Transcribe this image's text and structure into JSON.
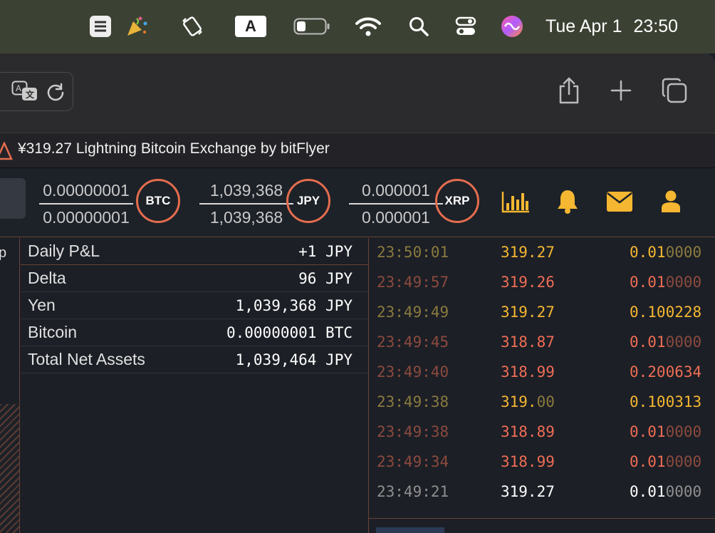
{
  "menubar": {
    "date": "Tue Apr 1",
    "time": "23:50",
    "keyboard_indicator": "A",
    "icons": [
      "stack-app-icon",
      "party-popper-icon",
      "display-mirror-icon",
      "keyboard-input-icon",
      "battery-icon",
      "wifi-icon",
      "spotlight-search-icon",
      "control-center-icon",
      "siri-icon"
    ]
  },
  "browser": {
    "tab_title": "¥319.27 Lightning Bitcoin Exchange by bitFlyer",
    "toolbar_icons": [
      "translate-icon",
      "reload-icon",
      "share-icon",
      "new-tab-plus-icon",
      "tab-overview-icon"
    ]
  },
  "header": {
    "balances": [
      {
        "top": "0.00000001",
        "bottom": "0.00000001",
        "currency": "BTC"
      },
      {
        "top": "1,039,368",
        "bottom": "1,039,368",
        "currency": "JPY"
      },
      {
        "top": "0.000001",
        "bottom": "0.000001",
        "currency": "XRP"
      }
    ],
    "icons": [
      "bar-chart-icon",
      "bell-icon",
      "envelope-icon",
      "user-icon"
    ],
    "accent_color": "#f5b731",
    "ring_color": "#e46d4e"
  },
  "assets": {
    "rows": [
      {
        "label": "Daily P&L",
        "value": "+1 JPY"
      },
      {
        "label": "Delta",
        "value": "96 JPY"
      },
      {
        "label": "Yen",
        "value": "1,039,368 JPY"
      },
      {
        "label": "Bitcoin",
        "value": "0.00000001 BTC"
      },
      {
        "label": "Total Net Assets",
        "value": "1,039,464 JPY"
      }
    ]
  },
  "trades": {
    "colors": {
      "buy": "#f5b731",
      "sell": "#ef6d55",
      "neutral": "#ffffff"
    },
    "rows": [
      {
        "time": "23:50:01",
        "price": "319.27",
        "size_main": "0.01",
        "size_tail": "0000",
        "side": "buy"
      },
      {
        "time": "23:49:57",
        "price": "319.26",
        "size_main": "0.01",
        "size_tail": "0000",
        "side": "sell"
      },
      {
        "time": "23:49:49",
        "price": "319.27",
        "size_main": "0.100228",
        "size_tail": "",
        "side": "buy"
      },
      {
        "time": "23:49:45",
        "price": "318.87",
        "size_main": "0.01",
        "size_tail": "0000",
        "side": "sell"
      },
      {
        "time": "23:49:40",
        "price": "318.99",
        "size_main": "0.200634",
        "size_tail": "",
        "side": "sell"
      },
      {
        "time": "23:49:38",
        "price_main": "319.",
        "price_tail": "00",
        "size_main": "0.100313",
        "size_tail": "",
        "side": "buy"
      },
      {
        "time": "23:49:38",
        "price": "318.89",
        "size_main": "0.01",
        "size_tail": "0000",
        "side": "sell"
      },
      {
        "time": "23:49:34",
        "price": "318.99",
        "size_main": "0.01",
        "size_tail": "0000",
        "side": "sell"
      },
      {
        "time": "23:49:21",
        "price": "319.27",
        "size_main": "0.01",
        "size_tail": "0000",
        "side": "neutral"
      }
    ]
  },
  "left_panel_fragment": "p"
}
